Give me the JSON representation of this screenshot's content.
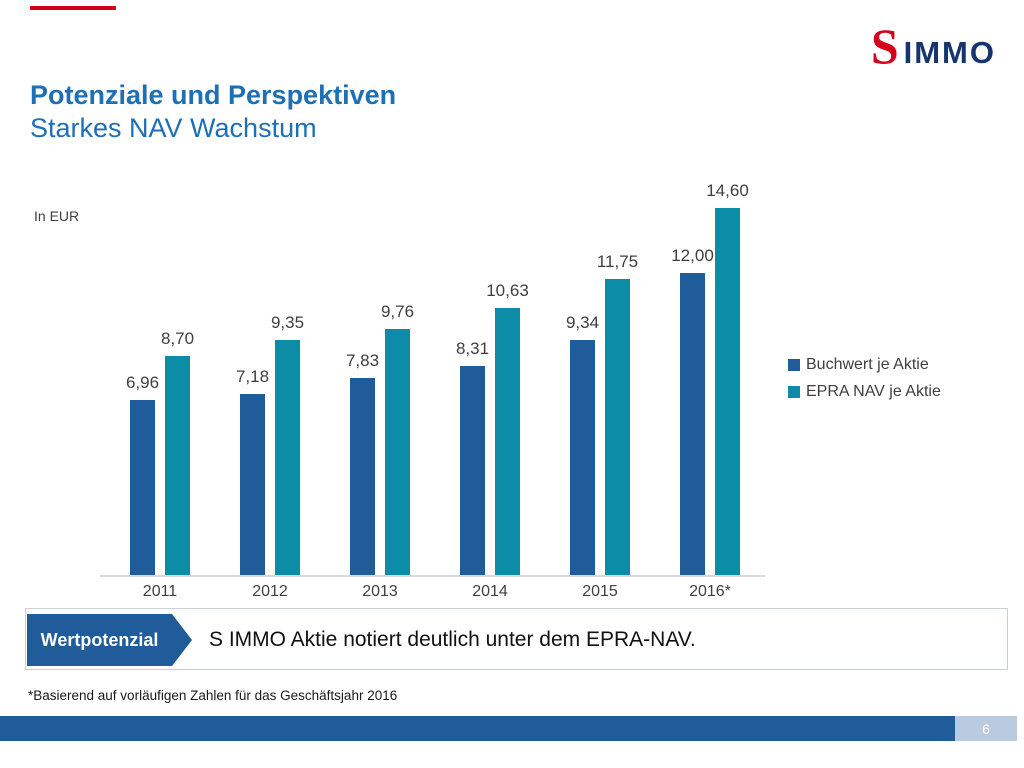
{
  "slide": {
    "title": "Potenziale und Perspektiven",
    "subtitle": "Starkes NAV Wachstum",
    "footnote": "*Basierend auf vorläufigen Zahlen für das Geschäftsjahr 2016",
    "page_number": "6"
  },
  "logo": {
    "symbol": "S",
    "text": "IMMO"
  },
  "callout": {
    "label": "Wertpotenzial",
    "text": "S IMMO Aktie notiert deutlich unter dem EPRA-NAV."
  },
  "chart_data": {
    "type": "bar",
    "title": "",
    "ylabel": "In EUR",
    "xlabel": "",
    "categories": [
      "2011",
      "2012",
      "2013",
      "2014",
      "2015",
      "2016*"
    ],
    "series": [
      {
        "name": "Buchwert je Aktie",
        "color": "#1f5c99",
        "values": [
          6.96,
          7.18,
          7.83,
          8.31,
          9.34,
          12.0
        ]
      },
      {
        "name": "EPRA NAV je Aktie",
        "color": "#0c8ca6",
        "values": [
          8.7,
          9.35,
          9.76,
          10.63,
          11.75,
          14.6
        ]
      }
    ],
    "value_label_format": "decimal-comma",
    "ylim": [
      0,
      15.5
    ],
    "grid": false,
    "legend_position": "right",
    "axis_line_color": "#d9d9d9"
  },
  "colors": {
    "accent_red": "#d5001c",
    "title_blue": "#1f6fb4",
    "logo_navy": "#16356e",
    "primary_blue": "#1f5c99",
    "teal": "#0c8ca6",
    "page_strip_light": "#b9cbde",
    "text_dark": "#3f3f3f"
  }
}
